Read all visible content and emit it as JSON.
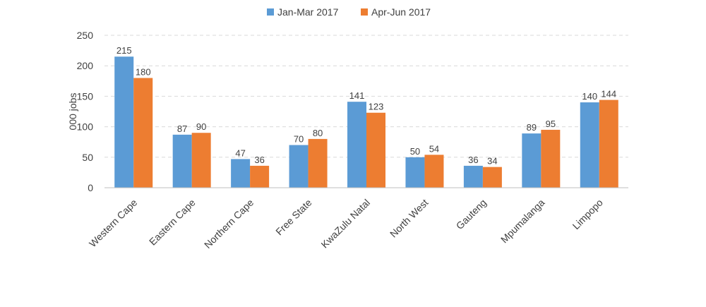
{
  "chart_data": {
    "type": "bar",
    "title": "",
    "xlabel": "",
    "ylabel": "000 jobs",
    "ylim": [
      0,
      250
    ],
    "yticks": [
      0,
      50,
      100,
      150,
      200,
      250
    ],
    "grid": "horizontal dashed",
    "legend_position": "top",
    "categories": [
      "Western Cape",
      "Eastern Cape",
      "Northern Cape",
      "Free State",
      "KwaZulu Natal",
      "North West",
      "Gauteng",
      "Mpumalanga",
      "Limpopo"
    ],
    "series": [
      {
        "name": "Jan-Mar 2017",
        "color": "#5b9bd5",
        "values": [
          215,
          87,
          47,
          70,
          141,
          50,
          36,
          89,
          140
        ]
      },
      {
        "name": "Apr-Jun 2017",
        "color": "#ed7d31",
        "values": [
          180,
          90,
          36,
          80,
          123,
          54,
          34,
          95,
          144
        ]
      }
    ]
  }
}
